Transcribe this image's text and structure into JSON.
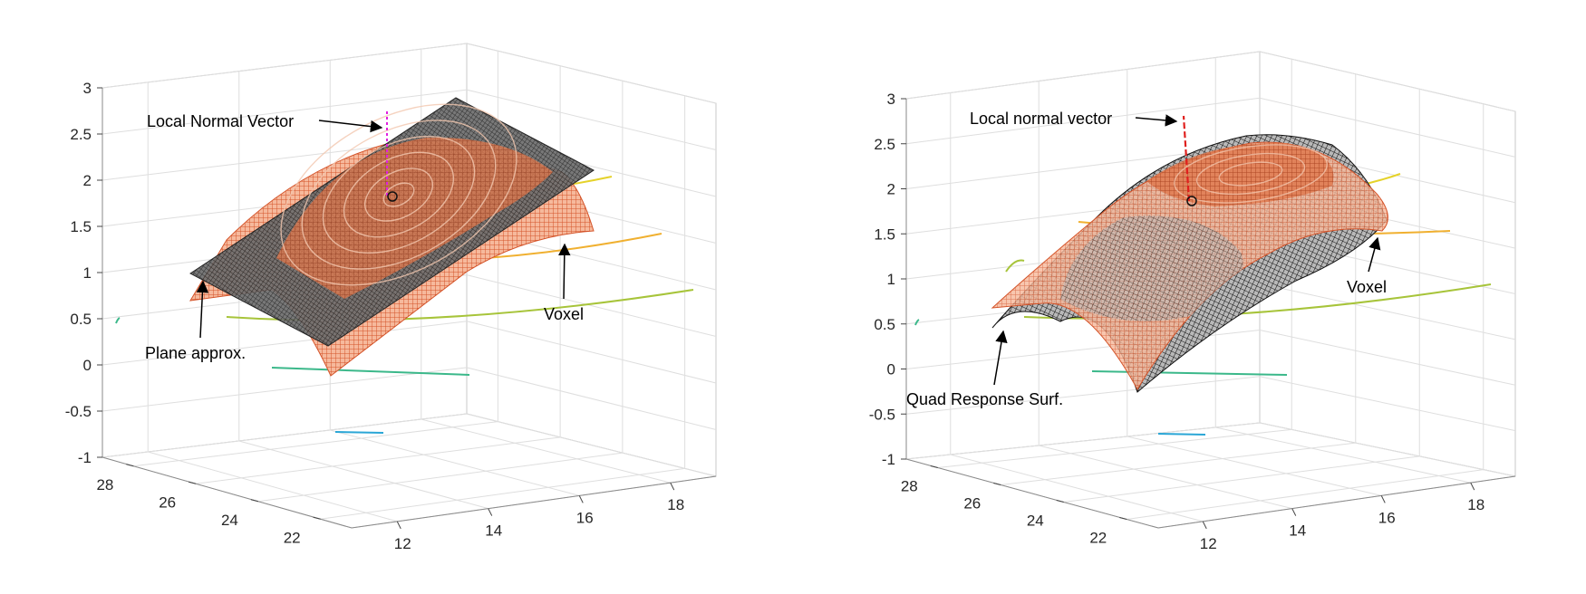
{
  "chart_data": [
    {
      "type": "surface3d",
      "title": "",
      "xlabel": "",
      "ylabel": "",
      "zlabel": "",
      "x_ticks": [
        12,
        14,
        16,
        18
      ],
      "y_ticks": [
        22,
        24,
        26,
        28
      ],
      "z_ticks": [
        -1,
        -0.5,
        0,
        0.5,
        1,
        1.5,
        2,
        2.5,
        3
      ],
      "xlim": [
        11,
        19
      ],
      "ylim": [
        21,
        29
      ],
      "zlim": [
        -1,
        3
      ],
      "grid": true,
      "surfaces": [
        {
          "name": "Voxel",
          "kind": "paraboloid",
          "color": "#e8673a",
          "center": [
            15,
            25
          ],
          "peak_z": 1.85
        },
        {
          "name": "Plane approx.",
          "kind": "tangent-plane",
          "color": "#4a4a4a",
          "z": 1.85
        }
      ],
      "point": [
        15,
        25,
        1.85
      ],
      "normal_vector": {
        "color": "#e020e0",
        "from_z": 1.85,
        "to_z": 2.75
      },
      "contour_colors": [
        "#e5d22a",
        "#f0b030",
        "#a7c43a",
        "#3bb88a",
        "#2aa6d6"
      ],
      "annotations": [
        "Local Normal Vector",
        "Plane approx.",
        "Voxel"
      ]
    },
    {
      "type": "surface3d",
      "title": "",
      "xlabel": "",
      "ylabel": "",
      "zlabel": "",
      "x_ticks": [
        12,
        14,
        16,
        18
      ],
      "y_ticks": [
        22,
        24,
        26,
        28
      ],
      "z_ticks": [
        -1,
        -0.5,
        0,
        0.5,
        1,
        1.5,
        2,
        2.5,
        3
      ],
      "xlim": [
        11,
        19
      ],
      "ylim": [
        21,
        29
      ],
      "zlim": [
        -1,
        3
      ],
      "grid": true,
      "surfaces": [
        {
          "name": "Voxel",
          "kind": "paraboloid",
          "color": "#e8673a",
          "center": [
            15,
            25
          ],
          "peak_z": 1.85
        },
        {
          "name": "Quad Response Surf.",
          "kind": "quadratic",
          "color": "#3a3a3a",
          "peak_z": 2.6
        }
      ],
      "point": [
        15,
        25,
        1.85
      ],
      "normal_vector": {
        "color": "#e0201e",
        "from_z": 1.85,
        "to_z": 2.75
      },
      "contour_colors": [
        "#e5d22a",
        "#f0b030",
        "#a7c43a",
        "#3bb88a",
        "#2aa6d6"
      ],
      "annotations": [
        "Local normal vector",
        "Quad Response Surf.",
        "Voxel"
      ]
    }
  ]
}
